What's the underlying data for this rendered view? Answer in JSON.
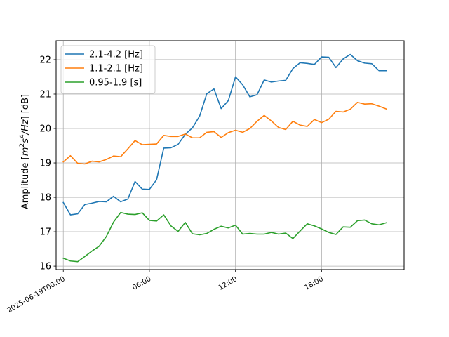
{
  "chart_data": {
    "type": "line",
    "title": "",
    "xlabel": "",
    "ylabel": "Amplitude [$m^2s^4/Hz$] [dB]",
    "ylabel_parts": {
      "prefix": "Amplitude [",
      "m": "m",
      "m_exp": "2",
      "s": "s",
      "s_exp": "4",
      "hz": "/Hz",
      "suffix": "] [dB]"
    },
    "x_hours_start": 0,
    "x_step_hours": 0.5,
    "xlim": [
      -0.5,
      23.75
    ],
    "ylim": [
      15.9,
      22.55
    ],
    "grid": true,
    "legend_position": "top-left",
    "x_ticks": [
      {
        "hour": 0,
        "label": "2025-06-19T00:00"
      },
      {
        "hour": 6,
        "label": "06:00"
      },
      {
        "hour": 12,
        "label": "12:00"
      },
      {
        "hour": 18,
        "label": "18:00"
      }
    ],
    "y_ticks": [
      {
        "value": 16,
        "label": "16"
      },
      {
        "value": 17,
        "label": "17"
      },
      {
        "value": 18,
        "label": "18"
      },
      {
        "value": 19,
        "label": "19"
      },
      {
        "value": 20,
        "label": "20"
      },
      {
        "value": 21,
        "label": "21"
      },
      {
        "value": 22,
        "label": "22"
      }
    ],
    "series": [
      {
        "name": "2.1-4.2 [Hz]",
        "color": "#1f77b4",
        "values": [
          17.85,
          17.49,
          17.52,
          17.79,
          17.83,
          17.88,
          17.87,
          18.03,
          17.87,
          17.95,
          18.46,
          18.24,
          18.23,
          18.51,
          19.43,
          19.44,
          19.54,
          19.83,
          20.02,
          20.36,
          21.01,
          21.15,
          20.58,
          20.81,
          21.5,
          21.27,
          20.92,
          20.98,
          21.41,
          21.35,
          21.38,
          21.4,
          21.74,
          21.91,
          21.89,
          21.86,
          22.08,
          22.07,
          21.77,
          22.02,
          22.15,
          21.97,
          21.9,
          21.88,
          21.68,
          21.68
        ]
      },
      {
        "name": "1.1-2.1 [Hz]",
        "color": "#ff7f0e",
        "values": [
          19.03,
          19.21,
          18.99,
          18.97,
          19.05,
          19.03,
          19.1,
          19.2,
          19.18,
          19.41,
          19.65,
          19.53,
          19.54,
          19.55,
          19.8,
          19.77,
          19.77,
          19.84,
          19.73,
          19.73,
          19.89,
          19.91,
          19.74,
          19.88,
          19.95,
          19.89,
          20.0,
          20.21,
          20.38,
          20.22,
          20.03,
          19.97,
          20.21,
          20.1,
          20.06,
          20.26,
          20.17,
          20.27,
          20.5,
          20.48,
          20.56,
          20.76,
          20.71,
          20.72,
          20.65,
          20.57
        ]
      },
      {
        "name": "0.95-1.9 [s]",
        "color": "#2ca02c",
        "values": [
          16.23,
          16.15,
          16.13,
          16.28,
          16.44,
          16.58,
          16.86,
          17.28,
          17.56,
          17.51,
          17.5,
          17.55,
          17.33,
          17.31,
          17.49,
          17.17,
          17.01,
          17.27,
          16.94,
          16.91,
          16.95,
          17.07,
          17.16,
          17.11,
          17.19,
          16.93,
          16.95,
          16.93,
          16.93,
          16.98,
          16.93,
          16.96,
          16.8,
          17.02,
          17.23,
          17.17,
          17.08,
          16.98,
          16.92,
          17.14,
          17.13,
          17.32,
          17.34,
          17.23,
          17.2,
          17.26
        ]
      }
    ]
  }
}
